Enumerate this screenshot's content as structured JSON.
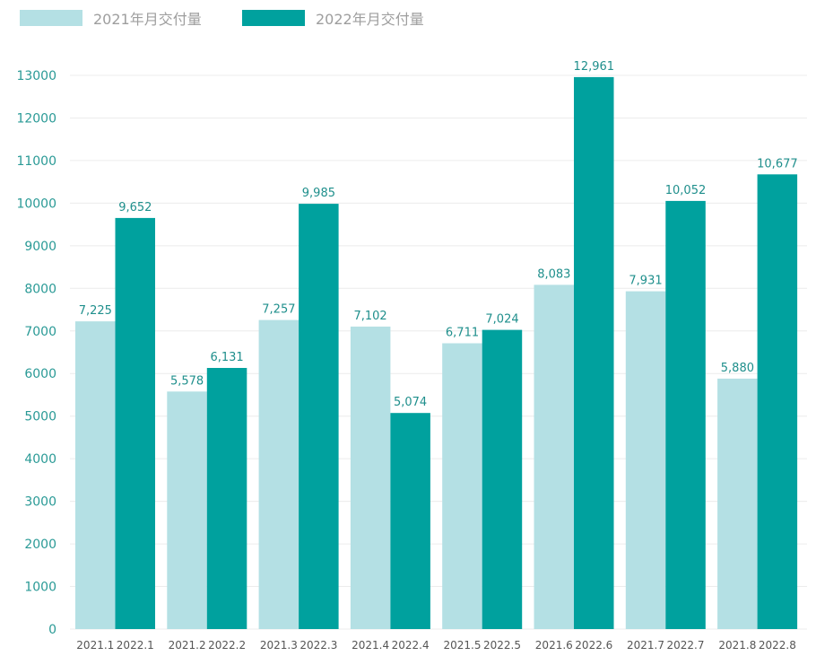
{
  "colors": {
    "series_2021": "#b4e0e4",
    "series_2022": "#00a19e",
    "grid": "#ececec",
    "axis_text": "#2a9a96"
  },
  "chart_data": {
    "type": "bar",
    "title": "",
    "xlabel": "",
    "ylabel": "",
    "ylim": [
      0,
      13000
    ],
    "yticks": [
      0,
      1000,
      2000,
      3000,
      4000,
      5000,
      6000,
      7000,
      8000,
      9000,
      10000,
      11000,
      12000,
      13000
    ],
    "grid": true,
    "legend_position": "top-left",
    "series": [
      {
        "name": "2021年月交付量",
        "categories": [
          "2021.1",
          "2021.2",
          "2021.3",
          "2021.4",
          "2021.5",
          "2021.6",
          "2021.7",
          "2021.8"
        ],
        "values": [
          7225,
          5578,
          7257,
          7102,
          6711,
          8083,
          7931,
          5880
        ],
        "value_labels": [
          "7,225",
          "5,578",
          "7,257",
          "7,102",
          "6,711",
          "8,083",
          "7,931",
          "5,880"
        ]
      },
      {
        "name": "2022年月交付量",
        "categories": [
          "2022.1",
          "2022.2",
          "2022.3",
          "2022.4",
          "2022.5",
          "2022.6",
          "2022.7",
          "2022.8"
        ],
        "values": [
          9652,
          6131,
          9985,
          5074,
          7024,
          12961,
          10052,
          10677
        ],
        "value_labels": [
          "9,652",
          "6,131",
          "9,985",
          "5,074",
          "7,024",
          "12,961",
          "10,052",
          "10,677"
        ]
      }
    ]
  }
}
